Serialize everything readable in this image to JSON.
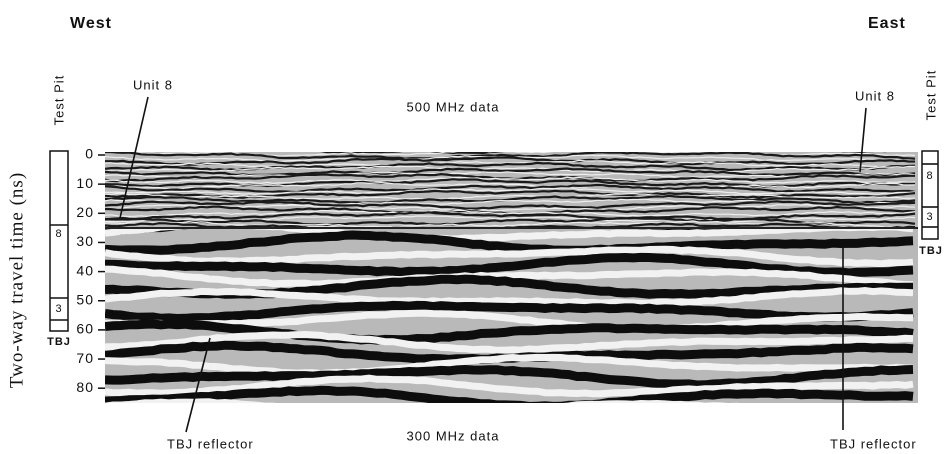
{
  "header": {
    "west": "West",
    "east": "East"
  },
  "axis": {
    "label": "Two-way travel time (ns)",
    "ticks": [
      0,
      10,
      20,
      30,
      40,
      50,
      60,
      70,
      80
    ]
  },
  "panels": {
    "upper": "500 MHz data",
    "lower": "300 MHz data"
  },
  "annotations": {
    "unit_west": "Unit 8",
    "unit_east": "Unit 8",
    "tbj_west": "TBJ reflector",
    "tbj_east": "TBJ reflector"
  },
  "test_pits": [
    {
      "title": "Test Pit",
      "layers": [
        "8",
        "3"
      ],
      "base": "TBJ"
    },
    {
      "title": "Test Pit",
      "layers": [
        "8",
        "3"
      ],
      "base": "TBJ"
    }
  ]
}
